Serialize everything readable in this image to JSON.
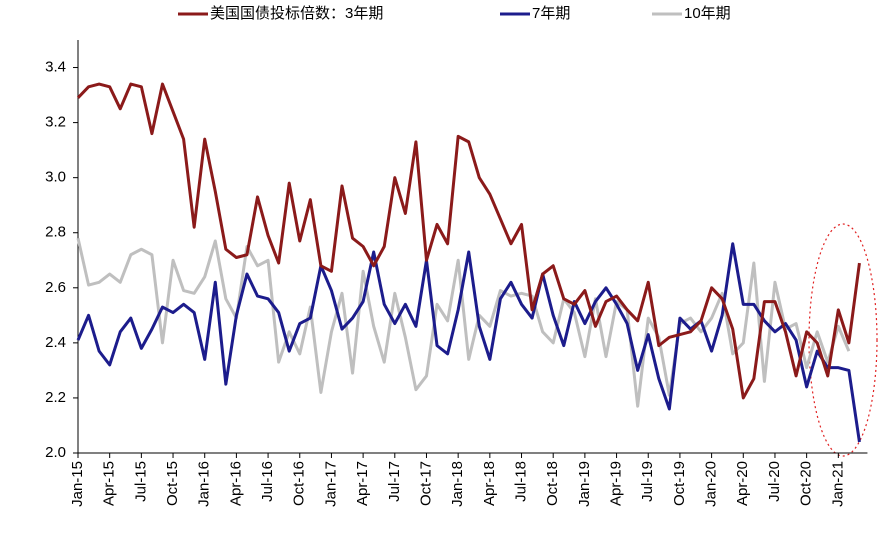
{
  "chart_data": {
    "type": "line",
    "categories": [
      "Jan-15",
      null,
      null,
      "Apr-15",
      null,
      null,
      "Jul-15",
      null,
      null,
      "Oct-15",
      null,
      null,
      "Jan-16",
      null,
      null,
      "Apr-16",
      null,
      null,
      "Jul-16",
      null,
      null,
      "Oct-16",
      null,
      null,
      "Jan-17",
      null,
      null,
      "Apr-17",
      null,
      null,
      "Jul-17",
      null,
      null,
      "Oct-17",
      null,
      null,
      "Jan-18",
      null,
      null,
      "Apr-18",
      null,
      null,
      "Jul-18",
      null,
      null,
      "Oct-18",
      null,
      null,
      "Jan-19",
      null,
      null,
      "Apr-19",
      null,
      null,
      "Jul-19",
      null,
      null,
      "Oct-19",
      null,
      null,
      "Jan-20",
      null,
      null,
      "Apr-20",
      null,
      null,
      "Jul-20",
      null,
      null,
      "Oct-20",
      null,
      null,
      "Jan-21",
      null,
      null
    ],
    "series": [
      {
        "name": "美国国债投标倍数：3年期",
        "color": "#8b1a1a",
        "values": [
          3.29,
          3.33,
          3.34,
          3.33,
          3.25,
          3.34,
          3.33,
          3.16,
          3.34,
          3.24,
          3.14,
          2.82,
          3.14,
          2.95,
          2.74,
          2.71,
          2.72,
          2.93,
          2.79,
          2.69,
          2.98,
          2.77,
          2.92,
          2.68,
          2.66,
          2.97,
          2.78,
          2.75,
          2.68,
          2.75,
          3.0,
          2.87,
          3.13,
          2.7,
          2.83,
          2.76,
          3.15,
          3.13,
          3.0,
          2.94,
          2.85,
          2.76,
          2.83,
          2.52,
          2.65,
          2.68,
          2.56,
          2.54,
          2.59,
          2.46,
          2.55,
          2.57,
          2.52,
          2.48,
          2.62,
          2.39,
          2.42,
          2.43,
          2.44,
          2.48,
          2.6,
          2.56,
          2.45,
          2.2,
          2.27,
          2.55,
          2.55,
          2.44,
          2.28,
          2.44,
          2.4,
          2.28,
          2.52,
          2.4,
          2.69
        ]
      },
      {
        "name": "7年期",
        "color": "#1c1c8c",
        "values": [
          2.41,
          2.5,
          2.37,
          2.32,
          2.44,
          2.49,
          2.38,
          2.45,
          2.53,
          2.51,
          2.54,
          2.51,
          2.34,
          2.62,
          2.25,
          2.5,
          2.65,
          2.57,
          2.56,
          2.51,
          2.37,
          2.47,
          2.49,
          2.68,
          2.59,
          2.45,
          2.49,
          2.55,
          2.73,
          2.54,
          2.47,
          2.54,
          2.46,
          2.7,
          2.39,
          2.36,
          2.52,
          2.73,
          2.46,
          2.34,
          2.56,
          2.62,
          2.54,
          2.49,
          2.65,
          2.5,
          2.39,
          2.55,
          2.47,
          2.55,
          2.6,
          2.54,
          2.47,
          2.3,
          2.43,
          2.27,
          2.16,
          2.49,
          2.45,
          2.48,
          2.37,
          2.5,
          2.76,
          2.54,
          2.54,
          2.48,
          2.44,
          2.47,
          2.41,
          2.24,
          2.37,
          2.31,
          2.31,
          2.3,
          2.04
        ]
      },
      {
        "name": "10年期",
        "color": "#bfbfbf",
        "values": [
          2.78,
          2.61,
          2.62,
          2.65,
          2.62,
          2.72,
          2.74,
          2.72,
          2.4,
          2.7,
          2.59,
          2.58,
          2.64,
          2.77,
          2.56,
          2.49,
          2.75,
          2.68,
          2.7,
          2.33,
          2.44,
          2.36,
          2.53,
          2.22,
          2.44,
          2.58,
          2.29,
          2.66,
          2.46,
          2.33,
          2.58,
          2.42,
          2.23,
          2.28,
          2.54,
          2.48,
          2.7,
          2.34,
          2.5,
          2.46,
          2.59,
          2.57,
          2.58,
          2.57,
          2.44,
          2.4,
          2.56,
          2.51,
          2.35,
          2.56,
          2.35,
          2.55,
          2.52,
          2.17,
          2.49,
          2.42,
          2.21,
          2.47,
          2.49,
          2.44,
          2.49,
          2.58,
          2.36,
          2.4,
          2.69,
          2.26,
          2.62,
          2.45,
          2.47,
          2.31,
          2.44,
          2.33,
          2.46,
          2.37,
          null
        ]
      }
    ],
    "ylim": [
      2,
      3.5
    ],
    "yticks": [
      {
        "value": 2,
        "label": "2.0"
      },
      2.2,
      2.4,
      2.6,
      2.8,
      {
        "value": 3,
        "label": "3.0"
      },
      3.2,
      3.4
    ]
  }
}
